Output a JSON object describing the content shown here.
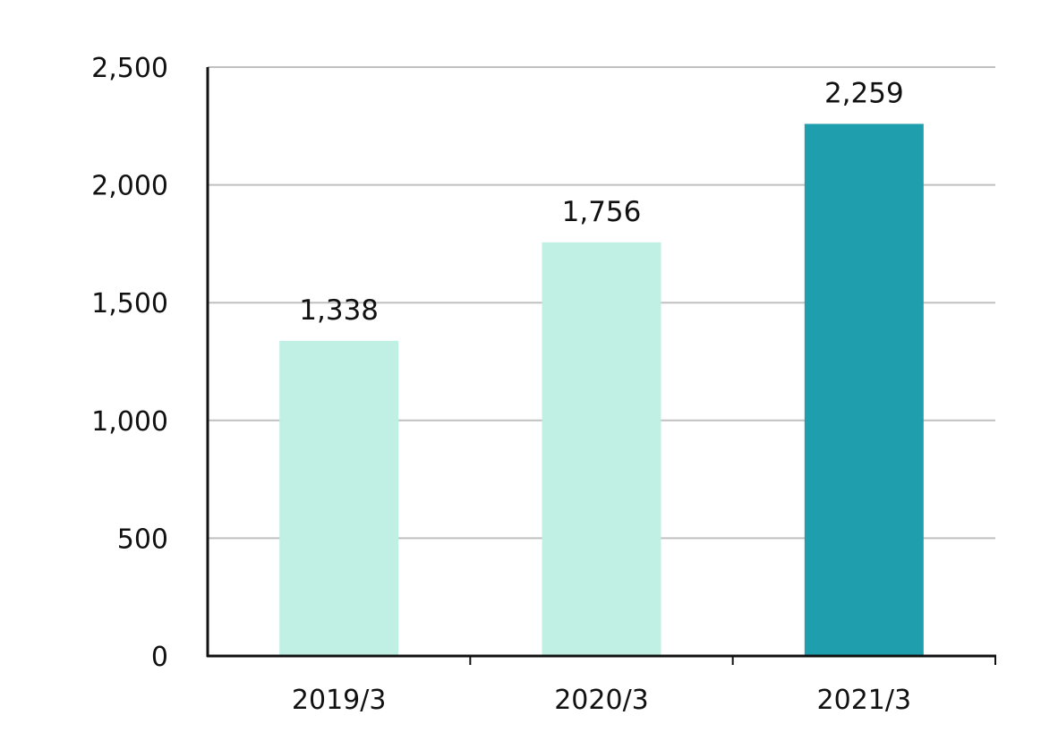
{
  "chart_data": {
    "type": "bar",
    "categories": [
      "2019/3",
      "2020/3",
      "2021/3"
    ],
    "values": [
      1338,
      1756,
      2259
    ],
    "data_labels": [
      "1,338",
      "1,756",
      "2,259"
    ],
    "y_ticks": [
      0,
      500,
      1000,
      1500,
      2000,
      2500
    ],
    "y_tick_labels": [
      "0",
      "500",
      "1,000",
      "1,500",
      "2,000",
      "2,500"
    ],
    "ylim": [
      0,
      2500
    ],
    "title": "",
    "xlabel": "",
    "ylabel": "",
    "grid": true,
    "bar_colors": [
      "#c0f0e4",
      "#c0f0e4",
      "#1f9eae"
    ],
    "grid_color": "#c0c0c0",
    "axis_color": "#111111"
  }
}
